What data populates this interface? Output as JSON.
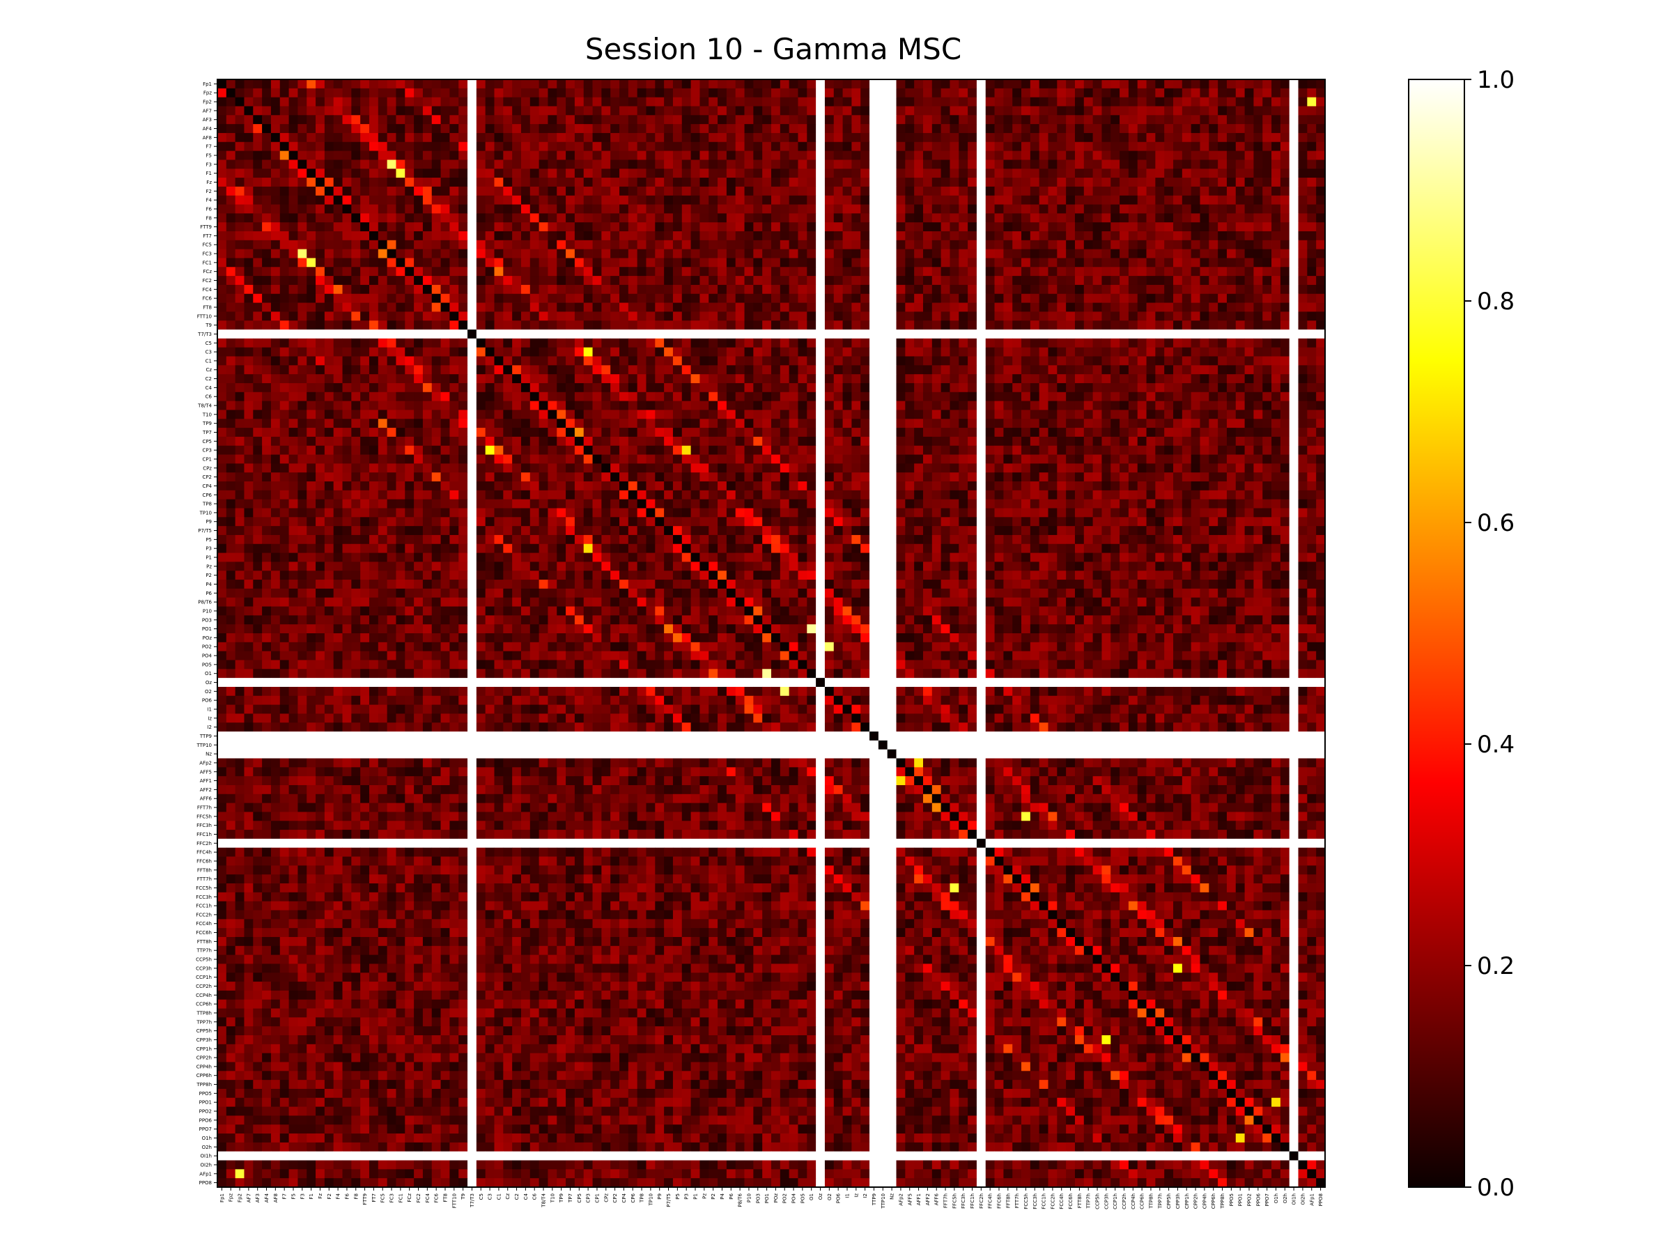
{
  "chart_data": {
    "type": "heatmap",
    "title": "Session 10 - Gamma MSC",
    "colormap": "hot",
    "clim": [
      0.0,
      1.0
    ],
    "colorbar_ticks": [
      "0.0",
      "0.2",
      "0.4",
      "0.6",
      "0.8",
      "1.0"
    ],
    "channels": [
      "Fp1",
      "Fpz",
      "Fp2",
      "AF7",
      "AF3",
      "AF4",
      "AF8",
      "F7",
      "F5",
      "F3",
      "F1",
      "Fz",
      "F2",
      "F4",
      "F6",
      "F8",
      "FTT9",
      "FT7",
      "FC5",
      "FC3",
      "FC1",
      "FCz",
      "FC2",
      "FC4",
      "FC6",
      "FT8",
      "FTT10",
      "T9",
      "T7/T3",
      "C5",
      "C3",
      "C1",
      "Cz",
      "C2",
      "C4",
      "C6",
      "T8/T4",
      "T10",
      "TP9",
      "TP7",
      "CP5",
      "CP3",
      "CP1",
      "CPz",
      "CP2",
      "CP4",
      "CP6",
      "TP8",
      "TP10",
      "P9",
      "P7/T5",
      "P5",
      "P3",
      "P1",
      "Pz",
      "P2",
      "P4",
      "P6",
      "P8/T6",
      "P10",
      "PO3",
      "PO1",
      "POz",
      "PO2",
      "PO4",
      "PO5",
      "O1",
      "Oz",
      "O2",
      "PO6",
      "I1",
      "Iz",
      "I2",
      "TTP9",
      "TTP10",
      "Nz",
      "AFp2",
      "AFF5",
      "AFF1",
      "AFF2",
      "AFF6",
      "FFT7h",
      "FFC5h",
      "FFC3h",
      "FFC1h",
      "FFC2h",
      "FFC4h",
      "FFC6h",
      "FFT8h",
      "FTT7h",
      "FCC5h",
      "FCC3h",
      "FCC1h",
      "FCC2h",
      "FCC4h",
      "FCC6h",
      "FTT8h",
      "TTP7h",
      "CCP5h",
      "CCP3h",
      "CCP1h",
      "CCP2h",
      "CCP4h",
      "CCP6h",
      "TTP8h",
      "TPP7h",
      "CPP5h",
      "CPP3h",
      "CPP1h",
      "CPP2h",
      "CPP4h",
      "CPP6h",
      "TPP8h",
      "PPO5",
      "PPO1",
      "PPO2",
      "PPO6",
      "PPO7",
      "O1h",
      "O2h",
      "OI1h",
      "OI2h",
      "AFp1",
      "PPO8"
    ],
    "invalid_channels": [
      "T7/T3",
      "Oz",
      "TTP9",
      "TTP10",
      "Nz",
      "FFC2h",
      "OI1h"
    ],
    "diagonal_value": 0.0,
    "strong_cluster_pairs": [
      [
        "F3",
        "FC3",
        0.85
      ],
      [
        "F1",
        "FC1",
        0.8
      ],
      [
        "C3",
        "CP3",
        0.75
      ],
      [
        "CP3",
        "P3",
        0.7
      ],
      [
        "PO1",
        "O1",
        0.9
      ],
      [
        "PO2",
        "O2",
        0.85
      ],
      [
        "FFC5h",
        "FCC5h",
        0.8
      ],
      [
        "CCP3h",
        "CPP3h",
        0.75
      ],
      [
        "AFp2",
        "AFF1",
        0.7
      ],
      [
        "PPO1",
        "O1h",
        0.7
      ],
      [
        "Fp2",
        "AFp1",
        0.8
      ]
    ]
  }
}
